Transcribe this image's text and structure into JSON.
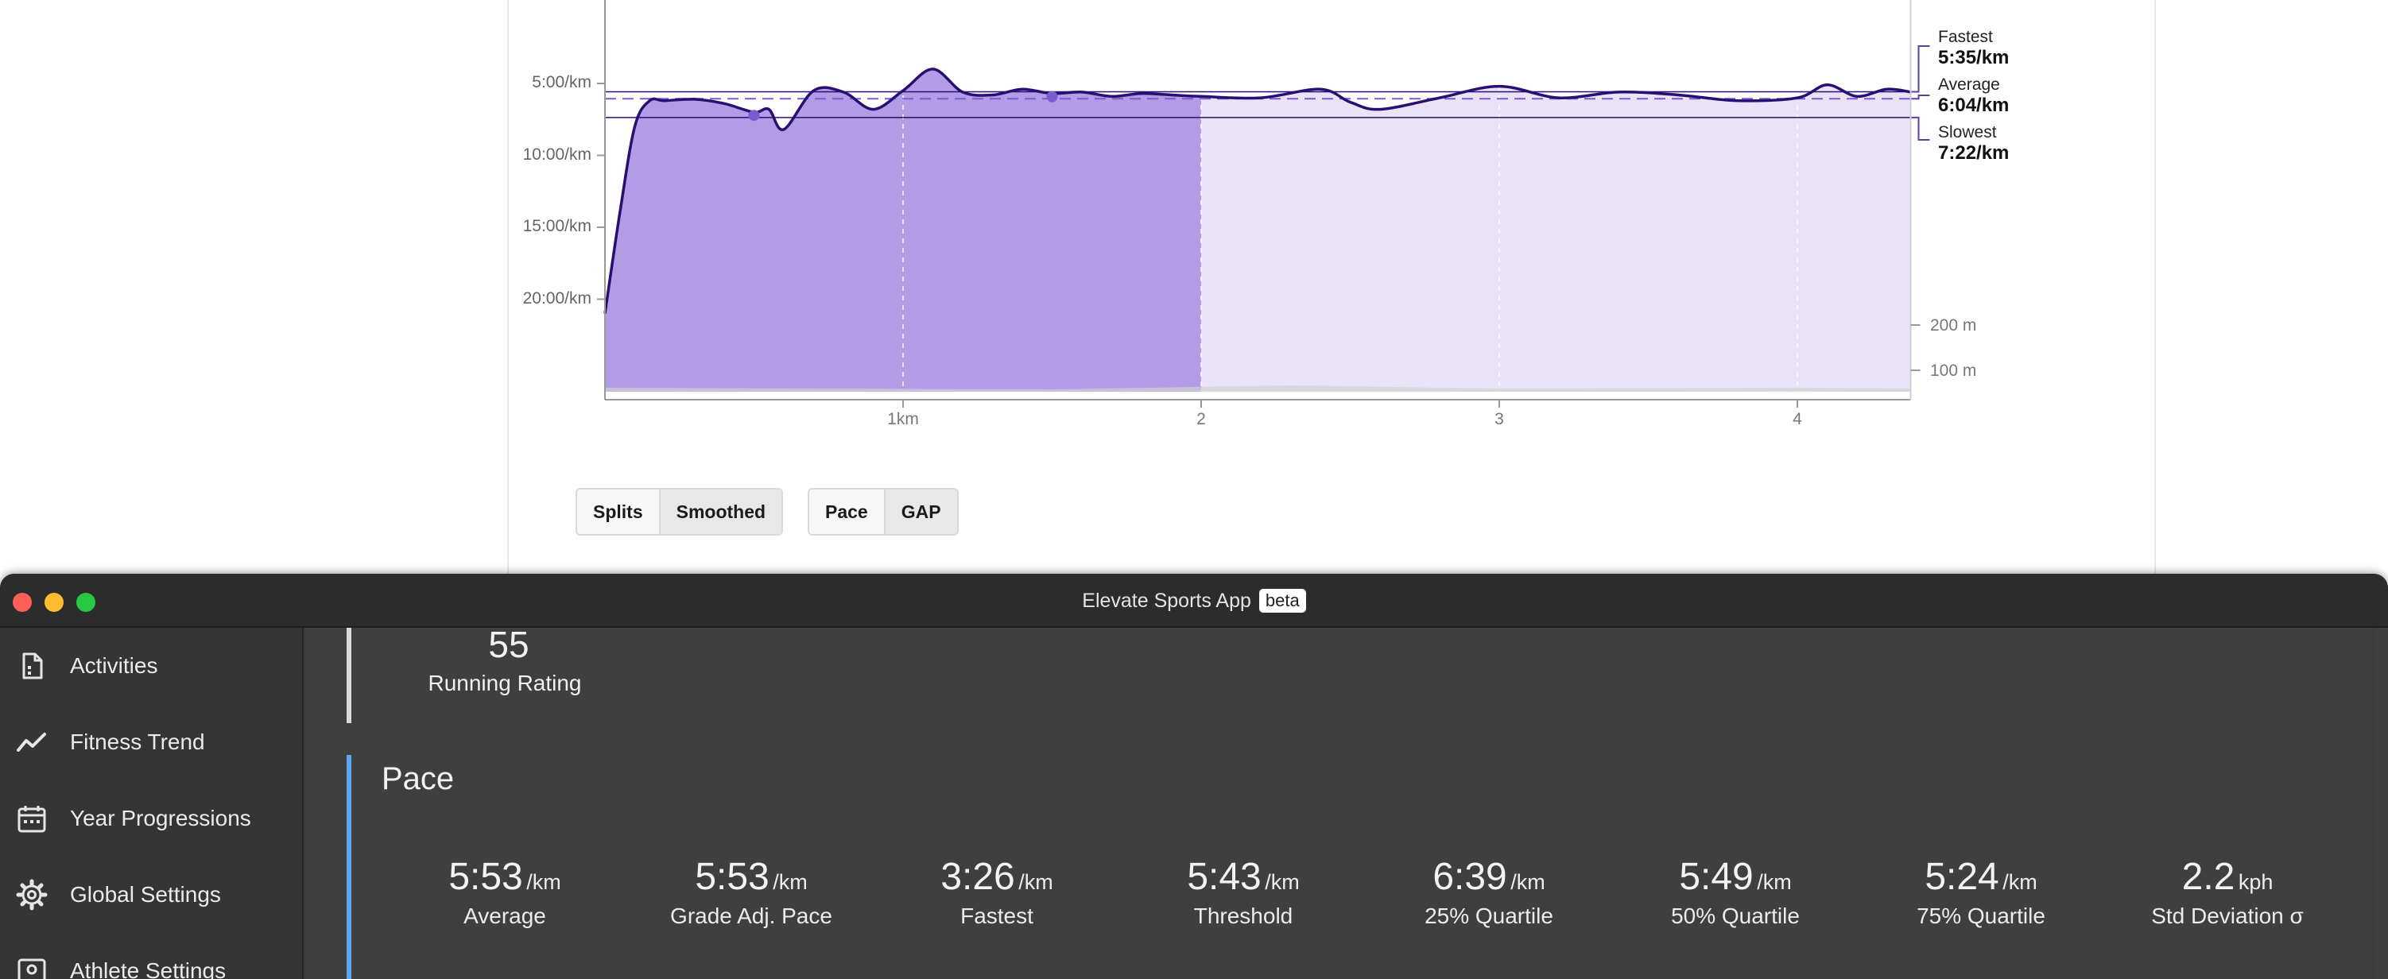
{
  "chart_data": {
    "type": "area",
    "x_label_ticks": [
      "1km",
      "2",
      "3",
      "4"
    ],
    "x": [
      0,
      0.05,
      0.1,
      0.15,
      0.2,
      0.3,
      0.4,
      0.5,
      0.55,
      0.6,
      0.7,
      0.8,
      0.9,
      1.0,
      1.1,
      1.2,
      1.3,
      1.4,
      1.5,
      1.6,
      1.7,
      1.8,
      1.9,
      2.0,
      2.2,
      2.4,
      2.5,
      2.6,
      2.8,
      3.0,
      3.2,
      3.4,
      3.6,
      3.8,
      4.0,
      4.1,
      4.2,
      4.3,
      4.38
    ],
    "pace_min_per_km": [
      21,
      14,
      8,
      6.2,
      6.2,
      6.1,
      6.4,
      7.0,
      6.8,
      8.2,
      5.5,
      5.6,
      6.8,
      5.5,
      4.0,
      5.6,
      5.8,
      5.4,
      5.7,
      5.6,
      5.9,
      5.7,
      5.8,
      5.9,
      6.0,
      5.4,
      6.3,
      6.8,
      6.0,
      5.2,
      6.0,
      5.6,
      5.8,
      6.2,
      6.0,
      5.1,
      5.9,
      5.4,
      5.6
    ],
    "y_ticks": [
      "5:00/km",
      "10:00/km",
      "15:00/km",
      "20:00/km"
    ],
    "elevation_ticks": [
      "200 m",
      "100 m"
    ],
    "highlight_range_km": [
      0,
      2
    ],
    "reference_lines": [
      {
        "label": "Fastest",
        "value": "5:35/km"
      },
      {
        "label": "Average",
        "value": "6:04/km"
      },
      {
        "label": "Slowest",
        "value": "7:22/km"
      }
    ],
    "series_color": "#2a0f73",
    "fill_color_active": "#b29ce5",
    "fill_color_inactive": "#eae3f8",
    "markers_km": [
      0.5,
      1.5
    ]
  },
  "chart_controls": {
    "group1": [
      "Splits",
      "Smoothed"
    ],
    "group2": [
      "Pace",
      "GAP"
    ]
  },
  "window": {
    "title": "Elevate Sports App",
    "badge": "beta"
  },
  "sidebar": {
    "items": [
      {
        "label": "Activities",
        "icon": "document-icon"
      },
      {
        "label": "Fitness Trend",
        "icon": "trend-icon"
      },
      {
        "label": "Year Progressions",
        "icon": "calendar-icon"
      },
      {
        "label": "Global Settings",
        "icon": "gear-icon"
      },
      {
        "label": "Athlete Settings",
        "icon": "athlete-icon"
      }
    ]
  },
  "rating": {
    "value": "55",
    "label": "Running Rating"
  },
  "pace": {
    "title": "Pace",
    "stats": [
      {
        "value": "5:53",
        "unit": "/km",
        "label": "Average"
      },
      {
        "value": "5:53",
        "unit": "/km",
        "label": "Grade Adj. Pace"
      },
      {
        "value": "3:26",
        "unit": "/km",
        "label": "Fastest"
      },
      {
        "value": "5:43",
        "unit": "/km",
        "label": "Threshold"
      },
      {
        "value": "6:39",
        "unit": "/km",
        "label": "25% Quartile"
      },
      {
        "value": "5:49",
        "unit": "/km",
        "label": "50% Quartile"
      },
      {
        "value": "5:24",
        "unit": "/km",
        "label": "75% Quartile"
      },
      {
        "value": "2.2",
        "unit": "kph",
        "label": "Std Deviation σ"
      }
    ]
  },
  "colors": {
    "section_bar_rating": "#d9d9d9",
    "section_bar_pace": "#5aa8ee"
  }
}
